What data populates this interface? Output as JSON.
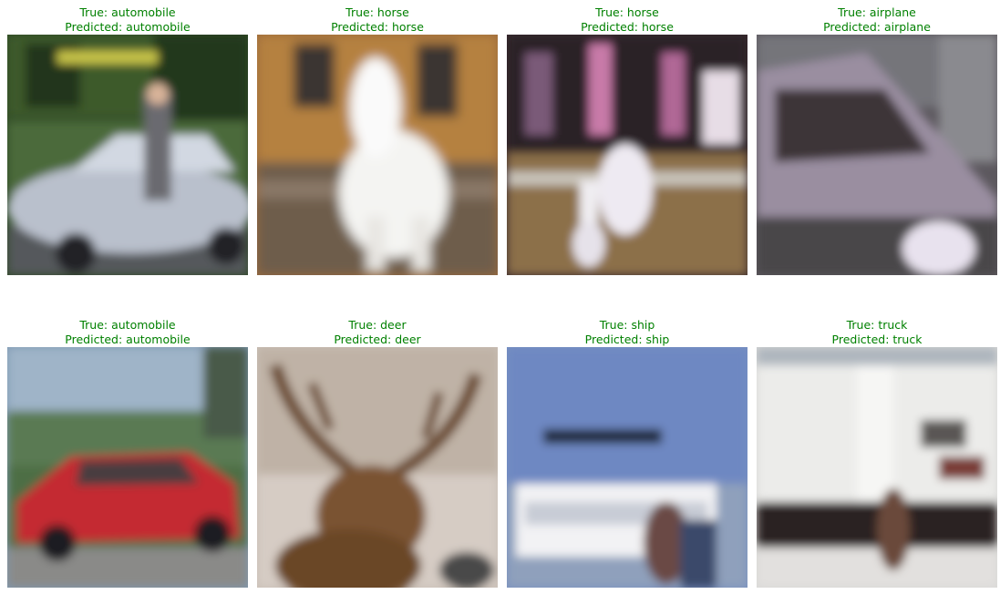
{
  "colors": {
    "correct_caption": "#008000"
  },
  "panels": [
    {
      "true_text": "True: automobile",
      "pred_text": "Predicted: automobile",
      "subject": "silver-sedan-with-person"
    },
    {
      "true_text": "True: horse",
      "pred_text": "Predicted: horse",
      "subject": "white-horse"
    },
    {
      "true_text": "True: horse",
      "pred_text": "Predicted: horse",
      "subject": "horse-and-rider-show"
    },
    {
      "true_text": "True: airplane",
      "pred_text": "Predicted: airplane",
      "subject": "aircraft-cockpit"
    },
    {
      "true_text": "True: automobile",
      "pred_text": "Predicted: automobile",
      "subject": "red-sedan"
    },
    {
      "true_text": "True: deer",
      "pred_text": "Predicted: deer",
      "subject": "deer-antlers"
    },
    {
      "true_text": "True: ship",
      "pred_text": "Predicted: ship",
      "subject": "pontoon-boat"
    },
    {
      "true_text": "True: truck",
      "pred_text": "Predicted: truck",
      "subject": "white-box-truck"
    }
  ]
}
